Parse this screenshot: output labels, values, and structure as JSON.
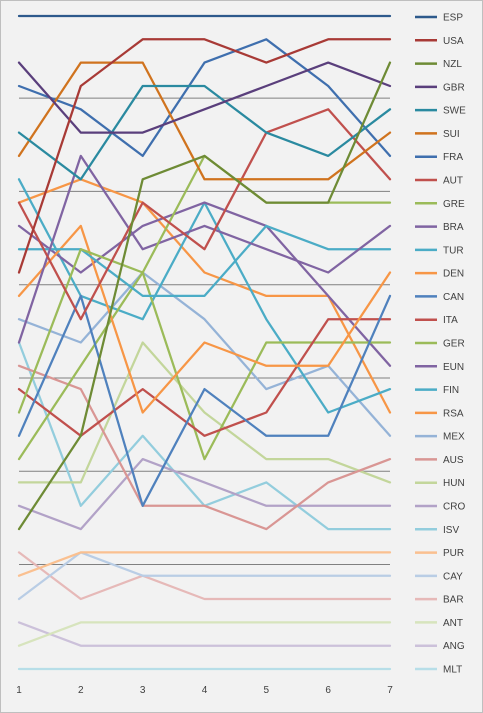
{
  "chart_data": {
    "type": "line",
    "title": "",
    "xlabel": "",
    "ylabel": "",
    "x": [
      1,
      2,
      3,
      4,
      5,
      6,
      7
    ],
    "y_axis_visible": false,
    "ylim": [
      1,
      29
    ],
    "y_inverted": true,
    "grid": "horizontal",
    "gridlines_at_rank": [
      4,
      8,
      12,
      16,
      20,
      24
    ],
    "legend_position": "right",
    "series": [
      {
        "name": "ESP",
        "color": "#2e5a8c",
        "values": [
          1,
          1,
          1,
          1,
          1,
          1,
          1
        ]
      },
      {
        "name": "USA",
        "color": "#a83a36",
        "values": [
          12,
          4,
          2,
          2,
          3,
          2,
          2
        ]
      },
      {
        "name": "NZL",
        "color": "#6e8b35",
        "values": [
          23,
          19,
          8,
          7,
          9,
          9,
          3
        ]
      },
      {
        "name": "GBR",
        "color": "#5a3f7c",
        "values": [
          3,
          6,
          6,
          5,
          4,
          3,
          4
        ]
      },
      {
        "name": "SWE",
        "color": "#2a8aa0",
        "values": [
          6,
          8,
          4,
          4,
          6,
          7,
          5
        ]
      },
      {
        "name": "SUI",
        "color": "#d0731e",
        "values": [
          7,
          3,
          3,
          8,
          8,
          8,
          6
        ]
      },
      {
        "name": "FRA",
        "color": "#3f6fae",
        "values": [
          4,
          5,
          7,
          3,
          2,
          4,
          7
        ]
      },
      {
        "name": "AUT",
        "color": "#c0504d",
        "values": [
          9,
          14,
          9,
          11,
          6,
          5,
          8
        ]
      },
      {
        "name": "GRE",
        "color": "#9bbb59",
        "values": [
          18,
          11,
          12,
          7,
          9,
          9,
          9
        ]
      },
      {
        "name": "BRA",
        "color": "#8064a2",
        "values": [
          15,
          7,
          11,
          10,
          11,
          12,
          10
        ]
      },
      {
        "name": "TUR",
        "color": "#4bacc6",
        "values": [
          11,
          11,
          13,
          13,
          10,
          11,
          11
        ]
      },
      {
        "name": "DEN",
        "color": "#f79646",
        "values": [
          13,
          10,
          18,
          15,
          16,
          16,
          12
        ]
      },
      {
        "name": "CAN",
        "color": "#4f81bd",
        "values": [
          19,
          13,
          22,
          17,
          19,
          19,
          13
        ]
      },
      {
        "name": "ITA",
        "color": "#c0504d",
        "values": [
          17,
          19,
          17,
          19,
          18,
          14,
          14
        ]
      },
      {
        "name": "GER",
        "color": "#9bbb59",
        "values": [
          20,
          16,
          12,
          20,
          15,
          15,
          15
        ]
      },
      {
        "name": "EUN",
        "color": "#8064a2",
        "values": [
          10,
          12,
          10,
          9,
          10,
          13,
          16
        ]
      },
      {
        "name": "FIN",
        "color": "#4bacc6",
        "values": [
          8,
          13,
          14,
          9,
          14,
          18,
          17
        ]
      },
      {
        "name": "RSA",
        "color": "#f79646",
        "values": [
          9,
          8,
          9,
          12,
          13,
          13,
          18
        ]
      },
      {
        "name": "MEX",
        "color": "#95b3d7",
        "values": [
          14,
          15,
          12,
          14,
          17,
          16,
          19
        ]
      },
      {
        "name": "AUS",
        "color": "#d99694",
        "values": [
          16,
          17,
          22,
          22,
          23,
          21,
          20
        ]
      },
      {
        "name": "HUN",
        "color": "#c3d69b",
        "values": [
          21,
          21,
          15,
          18,
          20,
          20,
          21
        ]
      },
      {
        "name": "CRO",
        "color": "#b2a2c7",
        "values": [
          22,
          23,
          20,
          21,
          22,
          22,
          22
        ]
      },
      {
        "name": "ISV",
        "color": "#93cddd",
        "values": [
          15,
          22,
          19,
          22,
          21,
          23,
          23
        ]
      },
      {
        "name": "PUR",
        "color": "#fac090",
        "values": [
          25,
          24,
          24,
          24,
          24,
          24,
          24
        ]
      },
      {
        "name": "CAY",
        "color": "#b9cde5",
        "values": [
          26,
          24,
          25,
          25,
          25,
          25,
          25
        ]
      },
      {
        "name": "BAR",
        "color": "#e6b9b8",
        "values": [
          24,
          26,
          25,
          26,
          26,
          26,
          26
        ]
      },
      {
        "name": "ANT",
        "color": "#d7e4bd",
        "values": [
          28,
          27,
          27,
          27,
          27,
          27,
          27
        ]
      },
      {
        "name": "ANG",
        "color": "#ccc1da",
        "values": [
          27,
          28,
          28,
          28,
          28,
          28,
          28
        ]
      },
      {
        "name": "MLT",
        "color": "#b7dee8",
        "values": [
          29,
          29,
          29,
          29,
          29,
          29,
          29
        ]
      }
    ]
  }
}
